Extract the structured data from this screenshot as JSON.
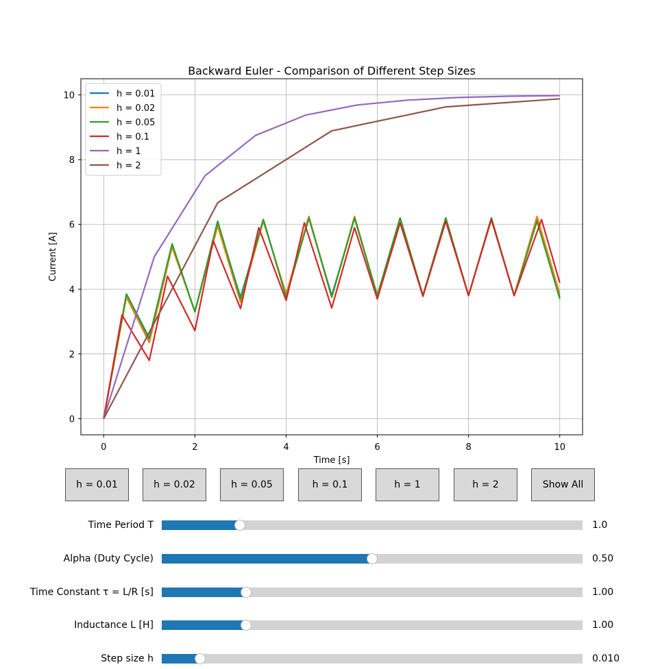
{
  "chart_data": {
    "type": "line",
    "title": "Backward Euler - Comparison of Different Step Sizes",
    "xlabel": "Time [s]",
    "ylabel": "Current [A]",
    "xlim": [
      -0.5,
      10.5
    ],
    "ylim": [
      -0.5,
      10.5
    ],
    "xticks": [
      0,
      2,
      4,
      6,
      8,
      10
    ],
    "yticks": [
      0,
      2,
      4,
      6,
      8,
      10
    ],
    "grid": true,
    "legend_position": "top-left",
    "series": [
      {
        "name": "h = 0.01",
        "color": "#1f77b4",
        "x": [
          0,
          0.5,
          1.0,
          1.5,
          2.0,
          2.5,
          3.0,
          3.5,
          4.0,
          4.5,
          5.0,
          5.5,
          6.0,
          6.5,
          7.0,
          7.5,
          8.0,
          8.5,
          9.0,
          9.5,
          10.0
        ],
        "y": [
          0,
          3.85,
          2.45,
          5.35,
          3.3,
          6.05,
          3.75,
          6.15,
          3.8,
          6.2,
          3.8,
          6.2,
          3.8,
          6.2,
          3.8,
          6.2,
          3.8,
          6.2,
          3.8,
          6.2,
          3.75
        ]
      },
      {
        "name": "h = 0.02",
        "color": "#ff7f0e",
        "x": [
          0,
          0.5,
          1.0,
          1.5,
          2.0,
          2.5,
          3.0,
          3.5,
          4.0,
          4.5,
          5.0,
          5.5,
          6.0,
          6.5,
          7.0,
          7.5,
          8.0,
          8.5,
          9.0,
          9.5,
          10.0
        ],
        "y": [
          0,
          3.75,
          2.35,
          5.3,
          3.3,
          5.95,
          3.6,
          6.1,
          3.85,
          6.25,
          3.75,
          6.25,
          3.8,
          6.2,
          3.8,
          6.2,
          3.8,
          6.2,
          3.8,
          6.25,
          3.85
        ]
      },
      {
        "name": "h = 0.05",
        "color": "#2ca02c",
        "x": [
          0,
          0.5,
          1.0,
          1.5,
          2.0,
          2.5,
          3.0,
          3.5,
          4.0,
          4.5,
          5.0,
          5.5,
          6.0,
          6.5,
          7.0,
          7.5,
          8.0,
          8.5,
          9.0,
          9.5,
          10.0
        ],
        "y": [
          0,
          3.85,
          2.5,
          5.4,
          3.3,
          6.1,
          3.7,
          6.15,
          3.75,
          6.2,
          3.75,
          6.2,
          3.8,
          6.2,
          3.8,
          6.2,
          3.8,
          6.2,
          3.8,
          6.1,
          3.7
        ]
      },
      {
        "name": "h = 0.1",
        "color": "#d62728",
        "x": [
          0,
          0.4,
          1.0,
          1.4,
          2.0,
          2.4,
          3.0,
          3.4,
          4.0,
          4.4,
          5.0,
          5.5,
          6.0,
          6.5,
          7.0,
          7.5,
          8.0,
          8.5,
          9.0,
          9.6,
          10.0
        ],
        "y": [
          0,
          3.2,
          1.8,
          4.4,
          2.72,
          5.5,
          3.4,
          5.9,
          3.65,
          6.05,
          3.42,
          5.9,
          3.7,
          6.05,
          3.78,
          6.1,
          3.8,
          6.15,
          3.8,
          6.15,
          4.2
        ]
      },
      {
        "name": "h = 1",
        "color": "#9467bd",
        "x": [
          0,
          1.11,
          2.22,
          3.33,
          4.44,
          5.56,
          6.67,
          7.78,
          8.89,
          10.0
        ],
        "y": [
          0,
          5.0,
          7.5,
          8.75,
          9.38,
          9.69,
          9.84,
          9.92,
          9.96,
          9.98
        ]
      },
      {
        "name": "h = 2",
        "color": "#8c564b",
        "x": [
          0,
          2.5,
          5.0,
          7.5,
          10.0
        ],
        "y": [
          0,
          6.67,
          8.89,
          9.63,
          9.88
        ]
      }
    ]
  },
  "buttons": [
    {
      "label": "h = 0.01"
    },
    {
      "label": "h = 0.02"
    },
    {
      "label": "h = 0.05"
    },
    {
      "label": "h = 0.1"
    },
    {
      "label": "h = 1"
    },
    {
      "label": "h = 2"
    },
    {
      "label": "Show All"
    }
  ],
  "sliders": [
    {
      "label": "Time Period T",
      "value_text": "1.0",
      "fraction": 0.185
    },
    {
      "label": "Alpha (Duty Cycle)",
      "value_text": "0.50",
      "fraction": 0.5
    },
    {
      "label": "Time Constant τ = L/R [s]",
      "value_text": "1.00",
      "fraction": 0.2
    },
    {
      "label": "Inductance L [H]",
      "value_text": "1.00",
      "fraction": 0.2
    },
    {
      "label": "Step size h",
      "value_text": "0.010",
      "fraction": 0.091
    }
  ]
}
